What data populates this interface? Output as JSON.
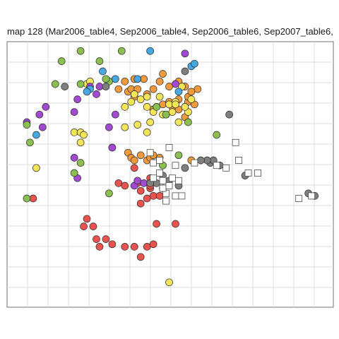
{
  "chart_data": {
    "type": "scatter",
    "title": "map 128 (Mar2006_table4, Sep2006_table4, Sep2006_table6, Sep2007_table6,",
    "xlabel": "",
    "ylabel": "",
    "xlim": [
      0,
      100
    ],
    "ylim": [
      0,
      100
    ],
    "grid": true,
    "series": [
      {
        "marker": "circle",
        "color": "#e8534f",
        "points": [
          [
            33,
            46
          ],
          [
            35,
            45
          ],
          [
            40,
            43
          ],
          [
            43,
            44
          ],
          [
            44,
            41
          ],
          [
            46,
            41
          ],
          [
            40,
            38
          ],
          [
            42,
            40
          ],
          [
            39,
            46
          ],
          [
            43,
            48
          ],
          [
            38,
            52
          ],
          [
            26,
            24
          ],
          [
            29,
            24
          ],
          [
            22,
            29
          ],
          [
            25,
            29
          ],
          [
            27,
            21
          ],
          [
            31,
            22
          ],
          [
            35,
            21
          ],
          [
            38,
            21
          ],
          [
            42,
            21
          ],
          [
            44,
            22
          ],
          [
            40,
            17
          ],
          [
            45,
            30
          ],
          [
            51,
            30
          ],
          [
            23,
            32
          ],
          [
            43,
            45
          ],
          [
            44,
            47
          ],
          [
            6,
            40
          ]
        ]
      },
      {
        "marker": "circle",
        "color": "#ef9a3c",
        "points": [
          [
            33,
            83
          ],
          [
            36,
            82
          ],
          [
            38,
            80
          ],
          [
            42,
            81
          ],
          [
            44,
            83
          ],
          [
            47,
            77
          ],
          [
            49,
            78
          ],
          [
            50,
            76
          ],
          [
            52,
            79
          ],
          [
            55,
            78
          ],
          [
            57,
            77
          ],
          [
            58,
            83
          ],
          [
            49,
            84
          ],
          [
            46,
            86
          ],
          [
            41,
            87
          ],
          [
            38,
            87
          ],
          [
            35,
            86
          ],
          [
            37,
            83
          ],
          [
            39,
            83
          ],
          [
            44,
            75
          ],
          [
            48,
            73
          ],
          [
            52,
            75
          ],
          [
            54,
            72
          ],
          [
            55,
            80
          ],
          [
            56,
            82
          ],
          [
            52,
            86
          ],
          [
            47,
            89
          ],
          [
            54,
            84
          ],
          [
            36,
            58
          ],
          [
            37,
            56
          ],
          [
            40,
            57
          ],
          [
            38,
            55
          ],
          [
            42,
            55
          ],
          [
            43,
            56
          ],
          [
            47,
            44
          ],
          [
            56,
            55
          ],
          [
            46,
            56
          ],
          [
            44,
            57
          ]
        ]
      },
      {
        "marker": "circle",
        "color": "#f2e55a",
        "points": [
          [
            35,
            76
          ],
          [
            37,
            78
          ],
          [
            40,
            79
          ],
          [
            42,
            76
          ],
          [
            44,
            74
          ],
          [
            47,
            73
          ],
          [
            50,
            74
          ],
          [
            52,
            70
          ],
          [
            55,
            74
          ],
          [
            51,
            78
          ],
          [
            46,
            80
          ],
          [
            42,
            80
          ],
          [
            38,
            81
          ],
          [
            23,
            85
          ],
          [
            24,
            86
          ],
          [
            19,
            66
          ],
          [
            21,
            66
          ],
          [
            21,
            62
          ],
          [
            35,
            68
          ],
          [
            39,
            69
          ],
          [
            42,
            66
          ],
          [
            43,
            70
          ],
          [
            49,
            77
          ],
          [
            51,
            77
          ],
          [
            53,
            84
          ],
          [
            56,
            79
          ],
          [
            54,
            76
          ],
          [
            7,
            52
          ],
          [
            22,
            65
          ],
          [
            49,
            7
          ]
        ]
      },
      {
        "marker": "circle",
        "color": "#a24ad0",
        "points": [
          [
            4,
            70
          ],
          [
            8,
            73
          ],
          [
            10,
            76
          ],
          [
            9,
            68
          ],
          [
            19,
            74
          ],
          [
            20,
            79
          ],
          [
            24,
            84
          ],
          [
            27,
            84
          ],
          [
            30,
            68
          ],
          [
            31,
            60
          ],
          [
            19,
            56
          ],
          [
            20,
            48
          ],
          [
            32,
            73
          ],
          [
            51,
            85
          ],
          [
            26,
            81
          ],
          [
            54,
            97
          ],
          [
            31,
            60
          ],
          [
            38,
            45
          ],
          [
            39,
            47
          ],
          [
            41,
            46
          ]
        ]
      },
      {
        "marker": "circle",
        "color": "#48a8e3",
        "points": [
          [
            24,
            83
          ],
          [
            28,
            90
          ],
          [
            32,
            87
          ],
          [
            43,
            98
          ],
          [
            56,
            92
          ],
          [
            57,
            93
          ],
          [
            52,
            82
          ],
          [
            7,
            65
          ],
          [
            23,
            82
          ],
          [
            39,
            87
          ]
        ]
      },
      {
        "marker": "circle",
        "color": "#8bc050",
        "points": [
          [
            21,
            98
          ],
          [
            34,
            98
          ],
          [
            15,
            94
          ],
          [
            13,
            85
          ],
          [
            27,
            94
          ],
          [
            21,
            85
          ],
          [
            30,
            86
          ],
          [
            29,
            87
          ],
          [
            5,
            62
          ],
          [
            4,
            69
          ],
          [
            21,
            54
          ],
          [
            4,
            40
          ],
          [
            19,
            50
          ],
          [
            30,
            42
          ],
          [
            55,
            70
          ],
          [
            48,
            73
          ],
          [
            45,
            76
          ],
          [
            47,
            53
          ],
          [
            52,
            57
          ],
          [
            64,
            65
          ]
        ]
      },
      {
        "marker": "circle",
        "color": "#7f7f7f",
        "points": [
          [
            29,
            84
          ],
          [
            54,
            90
          ],
          [
            45,
            46
          ],
          [
            47,
            49
          ],
          [
            52,
            45
          ],
          [
            43,
            46
          ],
          [
            49,
            47
          ],
          [
            68,
            73
          ],
          [
            73,
            49
          ],
          [
            62,
            54
          ],
          [
            63,
            55
          ],
          [
            65,
            53
          ],
          [
            54,
            52
          ],
          [
            61,
            55
          ],
          [
            59,
            55
          ],
          [
            95,
            41
          ],
          [
            93,
            42
          ],
          [
            16,
            84
          ]
        ]
      },
      {
        "marker": "square",
        "color": "#ffffff",
        "points": [
          [
            43,
            58
          ],
          [
            49,
            60
          ],
          [
            44,
            54
          ],
          [
            46,
            55
          ],
          [
            51,
            53
          ],
          [
            57,
            54
          ],
          [
            64,
            53
          ],
          [
            67,
            52
          ],
          [
            71,
            55
          ],
          [
            77,
            50
          ],
          [
            74,
            50
          ],
          [
            46,
            50
          ],
          [
            47,
            47
          ],
          [
            44,
            48
          ],
          [
            48,
            42
          ],
          [
            47,
            44
          ],
          [
            49,
            45
          ],
          [
            48,
            39
          ],
          [
            51,
            41
          ],
          [
            53,
            41
          ],
          [
            50,
            48
          ],
          [
            52,
            47
          ],
          [
            90,
            40
          ],
          [
            94,
            41
          ],
          [
            70,
            62
          ]
        ]
      }
    ]
  }
}
